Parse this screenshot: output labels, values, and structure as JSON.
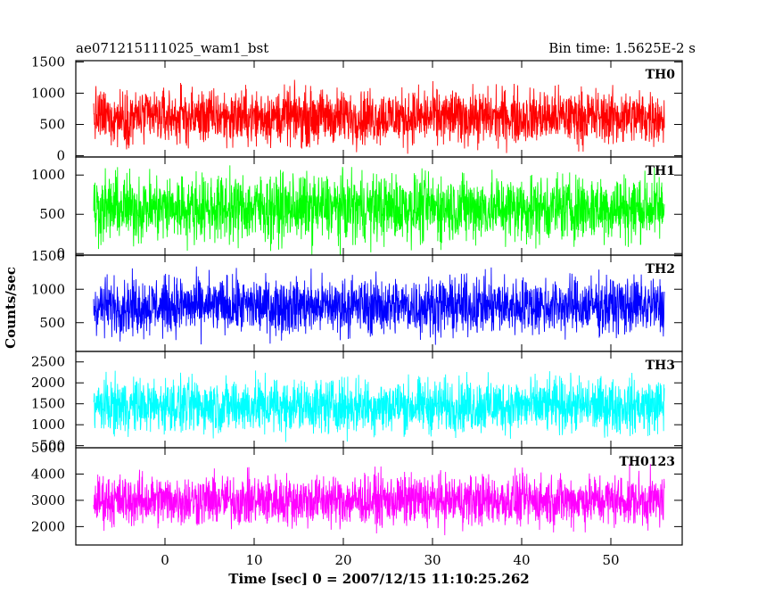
{
  "header": {
    "left": "ae071215111025_wam1_bst",
    "right": "Bin time: 1.5625E-2 s"
  },
  "chart_data": {
    "type": "line",
    "xlabel": "Time [sec] 0 = 2007/12/15 11:10:25.262",
    "ylabel": "Counts/sec",
    "xlim": [
      -10,
      58
    ],
    "x_range": [
      -8,
      56
    ],
    "xticks": [
      0,
      10,
      20,
      30,
      40,
      50
    ],
    "xtick_labels": [
      "0",
      "10",
      "20",
      "30",
      "40",
      "50"
    ],
    "grid": false,
    "panels": [
      {
        "name": "TH0",
        "color": "#ff0000",
        "ylim": [
          -20,
          1520
        ],
        "yticks": [
          0,
          500,
          1000,
          1500
        ],
        "ytick_labels": [
          "0",
          "500",
          "1000",
          "1500"
        ],
        "band": {
          "low": 120,
          "mid": 620,
          "high": 1150
        }
      },
      {
        "name": "TH1",
        "color": "#00ff00",
        "ylim": [
          -20,
          1230
        ],
        "yticks": [
          0,
          500,
          1000
        ],
        "ytick_labels": [
          "0",
          "500",
          "1000"
        ],
        "band": {
          "low": 80,
          "mid": 580,
          "high": 1090
        }
      },
      {
        "name": "TH2",
        "color": "#0000ff",
        "ylim": [
          70,
          1510
        ],
        "yticks": [
          500,
          1000,
          1500
        ],
        "ytick_labels": [
          "500",
          "1000",
          "1500"
        ],
        "band": {
          "low": 280,
          "mid": 750,
          "high": 1280
        }
      },
      {
        "name": "TH3",
        "color": "#00ffff",
        "ylim": [
          450,
          2750
        ],
        "yticks": [
          500,
          1000,
          1500,
          2000,
          2500
        ],
        "ytick_labels": [
          "500",
          "1000",
          "1500",
          "2000",
          "2500"
        ],
        "band": {
          "low": 820,
          "mid": 1450,
          "high": 2350
        }
      },
      {
        "name": "TH0123",
        "color": "#ff00ff",
        "ylim": [
          1300,
          5000
        ],
        "yticks": [
          2000,
          3000,
          4000,
          5000
        ],
        "ytick_labels": [
          "2000",
          "3000",
          "4000",
          "5000"
        ],
        "band": {
          "low": 1900,
          "mid": 3000,
          "high": 4200
        }
      }
    ]
  }
}
